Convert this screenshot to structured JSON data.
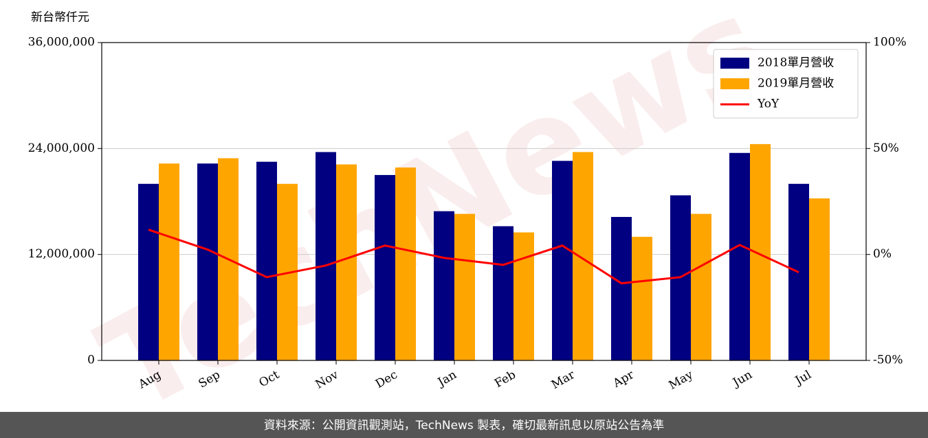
{
  "chart_data": {
    "type": "bar",
    "y_label": "新台幣仟元",
    "watermark": "TechNews",
    "source": "資料來源：公開資訊觀測站，TechNews 製表，確切最新訊息以原站公告為準",
    "categories": [
      "Aug",
      "Sep",
      "Oct",
      "Nov",
      "Dec",
      "Jan",
      "Feb",
      "Mar",
      "Apr",
      "May",
      "Jun",
      "Jul"
    ],
    "series": [
      {
        "name": "2018單月營收",
        "color": "#000080",
        "values": [
          20000000,
          22300000,
          22500000,
          23600000,
          21000000,
          16900000,
          15200000,
          22600000,
          16250000,
          18700000,
          23500000,
          20000000
        ]
      },
      {
        "name": "2019單月營收",
        "color": "#ffa500",
        "values": [
          22300000,
          22900000,
          20000000,
          22200000,
          21850000,
          16600000,
          14500000,
          23600000,
          14000000,
          16600000,
          24500000,
          18350000
        ]
      },
      {
        "name": "YoY",
        "color": "#ff0000",
        "type": "line",
        "axis": "y2",
        "values": [
          11.7,
          2.3,
          -10.7,
          -5.2,
          4.2,
          -1.6,
          -4.9,
          4.2,
          -13.6,
          -10.7,
          4.5,
          -8.4
        ]
      }
    ],
    "ylim": [
      0,
      36000000
    ],
    "yticks": [
      0,
      {
        "value": 12000000,
        "label": "12,000,000"
      },
      {
        "value": 24000000,
        "label": "24,000,000"
      },
      {
        "value": 36000000,
        "label": "36,000,000"
      }
    ],
    "y2lim": [
      -50,
      100
    ],
    "y2ticks": [
      {
        "value": -50,
        "label": "-50%"
      },
      {
        "value": 0,
        "label": "0%"
      },
      {
        "value": 50,
        "label": "50%"
      },
      {
        "value": 100,
        "label": "100%"
      }
    ],
    "grid": true,
    "legend": "upper right"
  }
}
